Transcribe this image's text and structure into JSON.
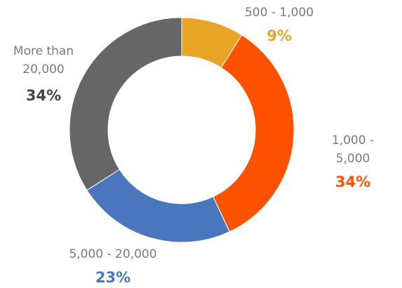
{
  "chart_data": {
    "type": "donut",
    "categories": [
      "500 - 1,000",
      "1,000 - 5,000",
      "5,000 - 20,000",
      "More than 20,000"
    ],
    "values": [
      9,
      34,
      23,
      34
    ],
    "value_labels": [
      "9%",
      "34%",
      "23%",
      "34%"
    ],
    "colors": [
      "#e9a526",
      "#ff5200",
      "#4a76be",
      "#666666"
    ]
  }
}
